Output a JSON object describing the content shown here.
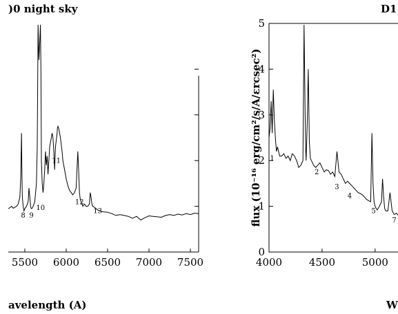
{
  "chart_data": [
    {
      "type": "line",
      "title": ")0 night sky",
      "xlabel": "avelength (A)",
      "ylabel": "",
      "xlim": [
        5300,
        7600
      ],
      "ylim": [
        0,
        5
      ],
      "xticks": [
        5500,
        6000,
        6500,
        7000,
        7500
      ],
      "xtick_labels": [
        "5500",
        "6000",
        "6500",
        "7000",
        "7500"
      ],
      "series": [
        {
          "x": [
            5300,
            5320,
            5340,
            5360,
            5380,
            5400,
            5420,
            5440,
            5450,
            5460,
            5465,
            5470,
            5480,
            5490,
            5500,
            5520,
            5540,
            5550,
            5560,
            5570,
            5577,
            5585,
            5600,
            5620,
            5640,
            5650,
            5660,
            5670,
            5680,
            5688,
            5695,
            5700,
            5710,
            5720,
            5730,
            5740,
            5750,
            5760,
            5770,
            5780,
            5790,
            5800,
            5810,
            5820,
            5830,
            5840,
            5850,
            5860,
            5870,
            5880,
            5890,
            5893,
            5900,
            5910,
            5920,
            5930,
            5940,
            5950,
            5960,
            5980,
            6000,
            6020,
            6040,
            6060,
            6080,
            6100,
            6120,
            6140,
            6150,
            6160,
            6170,
            6180,
            6200,
            6220,
            6240,
            6260,
            6280,
            6290,
            6300,
            6310,
            6320,
            6340,
            6360,
            6380,
            6400,
            6450,
            6500,
            6550,
            6600,
            6650,
            6700,
            6750,
            6800,
            6850,
            6900,
            6950,
            7000,
            7050,
            7100,
            7150,
            7200,
            7250,
            7300,
            7350,
            7400,
            7450,
            7500,
            7550,
            7600
          ],
          "y": [
            0.95,
            0.97,
            1.0,
            0.96,
            0.98,
            1.0,
            1.05,
            1.2,
            1.6,
            2.6,
            1.7,
            1.2,
            1.0,
            0.9,
            0.95,
            1.0,
            1.1,
            1.4,
            1.2,
            1.0,
            0.95,
            0.95,
            1.0,
            1.1,
            1.5,
            2.3,
            5.1,
            4.2,
            4.6,
            5.1,
            3.9,
            2.0,
            1.5,
            1.3,
            1.5,
            1.8,
            2.2,
            1.9,
            2.1,
            1.7,
            2.0,
            2.3,
            2.4,
            2.5,
            2.6,
            2.5,
            2.2,
            1.8,
            2.3,
            2.45,
            2.6,
            2.7,
            2.75,
            2.7,
            2.6,
            2.5,
            2.35,
            2.2,
            2.0,
            1.8,
            1.6,
            1.45,
            1.35,
            1.3,
            1.25,
            1.3,
            1.4,
            2.2,
            1.8,
            1.3,
            1.15,
            1.1,
            1.0,
            1.05,
            1.0,
            1.0,
            1.05,
            1.3,
            1.2,
            1.05,
            1.0,
            0.98,
            0.95,
            0.92,
            0.9,
            0.88,
            0.87,
            0.84,
            0.8,
            0.82,
            0.8,
            0.78,
            0.74,
            0.78,
            0.7,
            0.75,
            0.79,
            0.78,
            0.77,
            0.76,
            0.8,
            0.82,
            0.8,
            0.83,
            0.81,
            0.84,
            0.82,
            0.85,
            0.84
          ]
        }
      ],
      "annotations": [
        {
          "text": "8",
          "x": 5480,
          "y": 0.75
        },
        {
          "text": "9",
          "x": 5580,
          "y": 0.75
        },
        {
          "text": "10",
          "x": 5690,
          "y": 0.92
        },
        {
          "text": "11",
          "x": 5880,
          "y": 1.95
        },
        {
          "text": "12",
          "x": 6160,
          "y": 1.05
        },
        {
          "text": "13",
          "x": 6380,
          "y": 0.85
        }
      ]
    },
    {
      "type": "line",
      "title": "D1",
      "xlabel": "W",
      "ylabel": "flux (10⁻¹⁶ erg/cm²/s/A/ɛrcsec²)",
      "xlim": [
        4000,
        5300
      ],
      "ylim": [
        0,
        5
      ],
      "xticks": [
        4000,
        4500,
        5000
      ],
      "xtick_labels": [
        "4000",
        "4500",
        "5000"
      ],
      "yticks": [
        0,
        1,
        2,
        3,
        4,
        5
      ],
      "ytick_labels": [
        "0",
        "1",
        "2",
        "3",
        "4",
        "5"
      ],
      "series": [
        {
          "x": [
            4000,
            4010,
            4020,
            4030,
            4040,
            4050,
            4060,
            4070,
            4080,
            4100,
            4120,
            4140,
            4160,
            4180,
            4200,
            4220,
            4240,
            4260,
            4280,
            4300,
            4320,
            4330,
            4340,
            4345,
            4350,
            4360,
            4370,
            4380,
            4390,
            4400,
            4420,
            4440,
            4460,
            4480,
            4500,
            4520,
            4540,
            4560,
            4580,
            4600,
            4620,
            4640,
            4660,
            4680,
            4700,
            4720,
            4740,
            4760,
            4780,
            4800,
            4820,
            4840,
            4860,
            4880,
            4900,
            4920,
            4940,
            4958,
            4970,
            4980,
            4990,
            5000,
            5010,
            5020,
            5040,
            5060,
            5070,
            5080,
            5090,
            5100,
            5120,
            5140,
            5160,
            5180,
            5200,
            5220,
            5240,
            5260,
            5280,
            5300
          ],
          "y": [
            2.5,
            2.7,
            3.3,
            2.6,
            3.55,
            2.9,
            2.5,
            2.2,
            2.3,
            2.1,
            2.1,
            2.15,
            2.05,
            2.1,
            2.0,
            2.15,
            2.1,
            2.0,
            1.85,
            1.9,
            2.0,
            5.0,
            3.1,
            2.3,
            2.0,
            2.8,
            4.0,
            2.4,
            2.05,
            2.0,
            1.9,
            1.85,
            1.9,
            1.95,
            1.85,
            1.75,
            1.8,
            1.78,
            1.7,
            1.75,
            1.65,
            2.2,
            1.75,
            1.7,
            1.6,
            1.5,
            1.55,
            1.5,
            1.45,
            1.4,
            1.35,
            1.3,
            1.28,
            1.25,
            1.2,
            1.15,
            1.12,
            1.1,
            2.6,
            1.5,
            1.1,
            1.0,
            0.95,
            0.92,
            1.0,
            1.1,
            1.6,
            1.2,
            0.95,
            0.9,
            0.9,
            1.3,
            0.9,
            0.82,
            0.85,
            0.8,
            0.78,
            0.82,
            0.85,
            0.8
          ]
        }
      ],
      "annotations": [
        {
          "text": "1",
          "x": 4030,
          "y": 2.0
        },
        {
          "text": "2",
          "x": 4450,
          "y": 1.7
        },
        {
          "text": "3",
          "x": 4640,
          "y": 1.38
        },
        {
          "text": "4",
          "x": 4760,
          "y": 1.18
        },
        {
          "text": "5",
          "x": 4985,
          "y": 0.85
        },
        {
          "text": "7",
          "x": 5180,
          "y": 0.65
        }
      ]
    }
  ]
}
